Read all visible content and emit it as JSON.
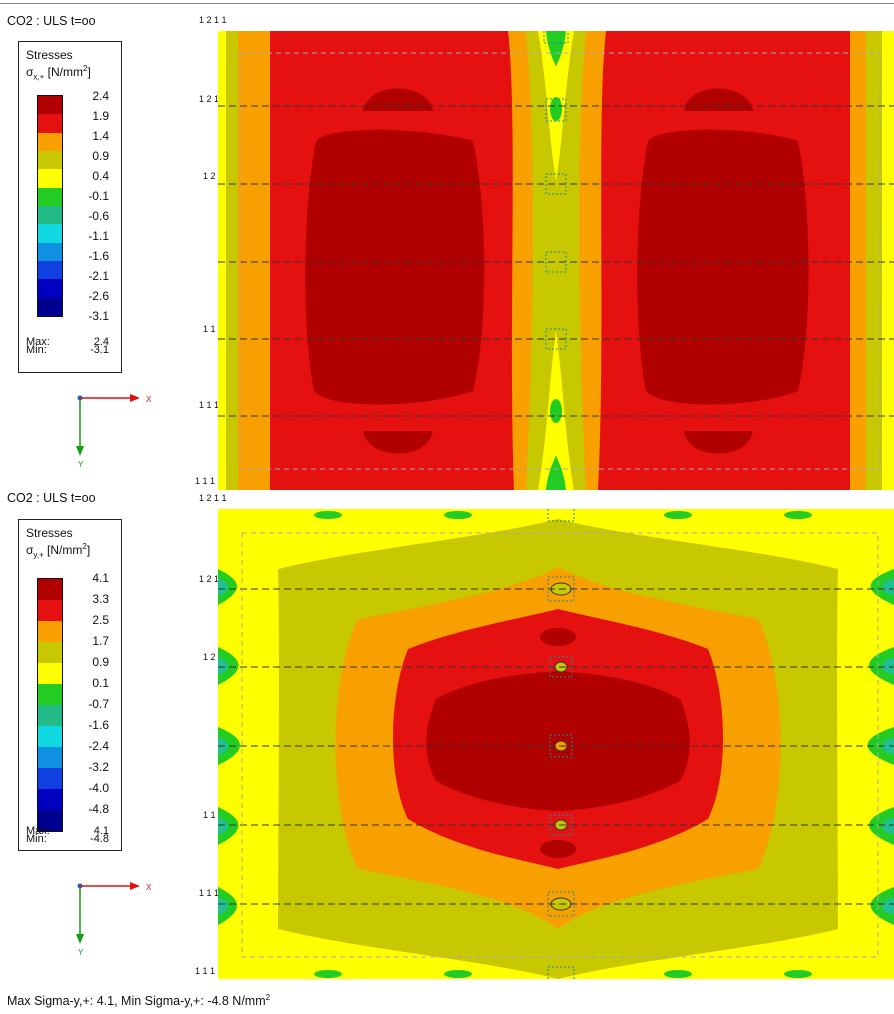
{
  "panels": [
    {
      "title": "CO2 : ULS t=oo",
      "legend": {
        "title": "Stresses",
        "unit_symbol": "σ",
        "unit_sub": "x,+",
        "unit_text": " [N/mm",
        "unit_sup": "2",
        "unit_close": "]",
        "levels": [
          "2.4",
          "1.9",
          "1.4",
          "0.9",
          "0.4",
          "-0.1",
          "-0.6",
          "-1.1",
          "-1.6",
          "-2.1",
          "-2.6",
          "-3.1"
        ],
        "max_label": "Max:",
        "max_value": "2.4",
        "min_label": "Min:",
        "min_value": "-3.1"
      },
      "top_label": "1 2 1 1",
      "row_labels": [
        "1 2 1",
        "1 2",
        "1 1",
        "1 1 1",
        "1 1 1 1"
      ]
    },
    {
      "title": "CO2 : ULS t=oo",
      "legend": {
        "title": "Stresses",
        "unit_symbol": "σ",
        "unit_sub": "y,+",
        "unit_text": " [N/mm",
        "unit_sup": "2",
        "unit_close": "]",
        "levels": [
          "4.1",
          "3.3",
          "2.5",
          "1.7",
          "0.9",
          "0.1",
          "-0.7",
          "-1.6",
          "-2.4",
          "-3.2",
          "-4.0",
          "-4.8"
        ],
        "max_label": "Max:",
        "max_value": "4.1",
        "min_label": "Min:",
        "min_value": "-4.8"
      },
      "top_label": "1 2 1 1",
      "row_labels": [
        "1 2 1",
        "1 2",
        "1 1",
        "1 1 1",
        "1 1 1 1"
      ]
    }
  ],
  "axes": {
    "x_label": "X",
    "y_label": "Y"
  },
  "colors": {
    "band": [
      "#b00000",
      "#e51010",
      "#f8a000",
      "#c8c800",
      "#ffff00",
      "#22cc22",
      "#22bb88",
      "#10d8e0",
      "#1090e0",
      "#1040e0",
      "#0000c0",
      "#000090"
    ],
    "dark_red": "#b00000",
    "red": "#e51010",
    "orange": "#f8a000",
    "olive": "#c8c800",
    "yellow": "#ffff00",
    "green": "#22cc22",
    "teal": "#20c090",
    "axis_x": "#e01010",
    "axis_y": "#10a010"
  },
  "footer": {
    "text": "Max Sigma-y,+: 4.1, Min Sigma-y,+: -4.8 N/mm",
    "sup": "2"
  }
}
